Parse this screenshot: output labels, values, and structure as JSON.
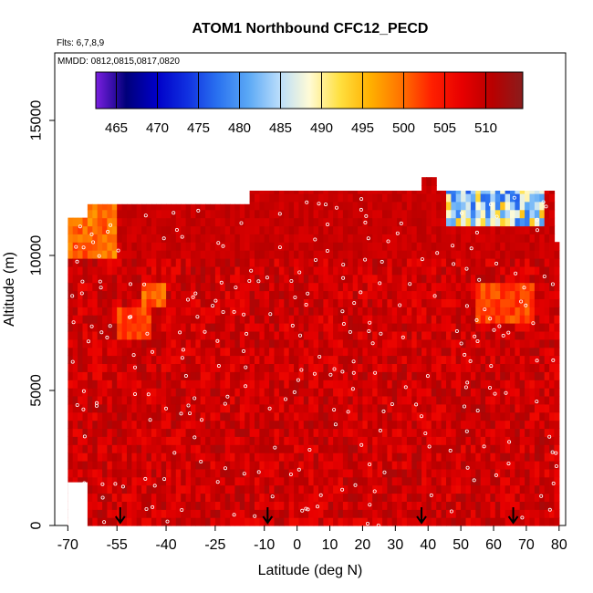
{
  "chart_data": {
    "type": "heatmap",
    "title": "ATOM1 Northbound CFC12_PECD",
    "flights_label": "Flts: 6,7,8,9",
    "dates_label": "MMDD: 0812,0815,0817,0820",
    "xlabel": "Latitude (deg N)",
    "ylabel": "Altitude (m)",
    "xlim": [
      -74,
      82
    ],
    "ylim": [
      0,
      17500
    ],
    "xticks": [
      -70,
      -55,
      -40,
      -25,
      -10,
      0,
      10,
      20,
      30,
      40,
      50,
      60,
      70,
      80
    ],
    "yticks": [
      0,
      5000,
      10000,
      15000
    ],
    "colorbar": {
      "range": [
        462.5,
        514.5
      ],
      "ticks": [
        465,
        470,
        475,
        480,
        485,
        490,
        495,
        500,
        505,
        510
      ],
      "palette": [
        "#7a1fe0",
        "#00007a",
        "#0000c8",
        "#1030e0",
        "#2a72f0",
        "#5aa8f5",
        "#b8dcfb",
        "#fffbd6",
        "#ffe040",
        "#ffb000",
        "#ff7400",
        "#ff2000",
        "#e80000",
        "#b80000",
        "#8a1c1c"
      ]
    },
    "arrow_latitudes": [
      -54,
      -9,
      38,
      66
    ],
    "coverage": {
      "lat_range": [
        -70,
        80
      ],
      "alt_range": [
        0,
        12500
      ],
      "lat_top_edges": [
        [
          -70,
          11400
        ],
        [
          -64,
          11900
        ],
        [
          -15,
          12400
        ],
        [
          38,
          12900
        ],
        [
          42,
          12400
        ],
        [
          74,
          12400
        ],
        [
          78,
          10500
        ],
        [
          80,
          7600
        ]
      ]
    },
    "field_notes": [
      {
        "lat_range": [
          -70,
          -55
        ],
        "alt_range": [
          10000,
          11900
        ],
        "value_range": [
          497,
          503
        ]
      },
      {
        "lat_range": [
          -55,
          -45
        ],
        "alt_range": [
          7000,
          8200
        ],
        "value_range": [
          500,
          504
        ]
      },
      {
        "lat_range": [
          -47,
          -40
        ],
        "alt_range": [
          8200,
          9000
        ],
        "value_range": [
          498,
          503
        ]
      },
      {
        "lat_range": [
          45,
          75
        ],
        "alt_range": [
          11000,
          12400
        ],
        "value_range": [
          476,
          495
        ]
      },
      {
        "lat_range": [
          55,
          72
        ],
        "alt_range": [
          7500,
          9000
        ],
        "value_range": [
          500,
          504
        ]
      },
      {
        "lat_range": [
          -70,
          80
        ],
        "alt_range": [
          0,
          10000
        ],
        "value_range": [
          506,
          512
        ]
      }
    ]
  }
}
